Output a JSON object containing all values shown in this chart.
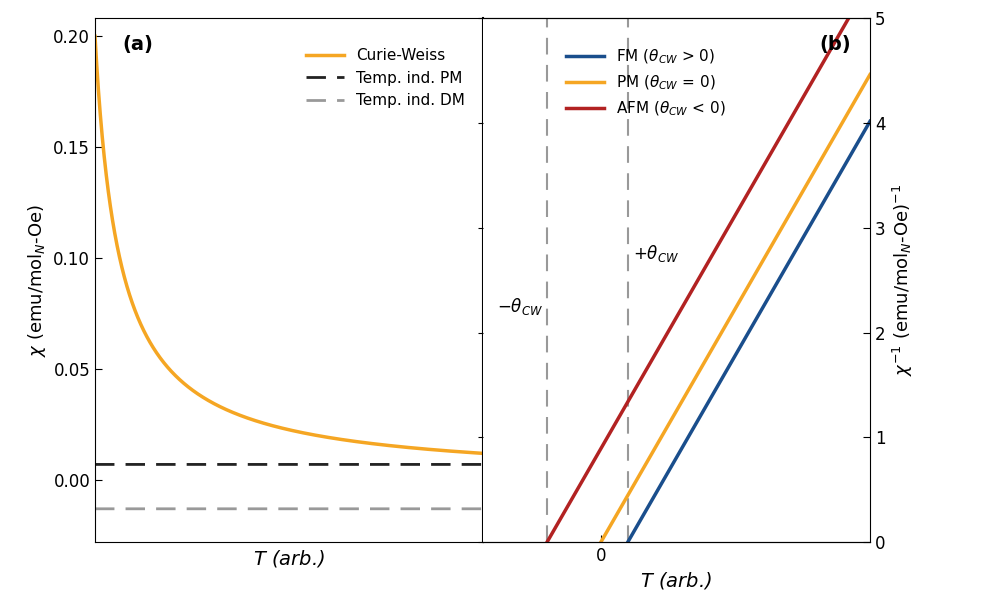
{
  "panel_a": {
    "label": "(a)",
    "curie_weiss_color": "#F5A623",
    "pm_color": "#222222",
    "dm_color": "#999999",
    "ylabel": "$\\chi$ (emu/mol$_N$-Oe)",
    "xlabel": "$T$ (arb.)",
    "ylim": [
      -0.028,
      0.208
    ],
    "yticks": [
      0.0,
      0.05,
      0.1,
      0.15,
      0.2
    ],
    "legend_labels": [
      "Curie-Weiss",
      "Temp. ind. PM",
      "Temp. ind. DM"
    ],
    "pm_value": 0.007,
    "dm_value": -0.013,
    "C_val": 0.06,
    "T_min": 0.3,
    "T_max": 5.0
  },
  "panel_b": {
    "label": "(b)",
    "fm_color": "#1A4E8C",
    "pm_color": "#F5A623",
    "afm_color": "#B22222",
    "ylabel": "$\\chi^{-1}$ (emu/mol$_N$-Oe)$^{-1}$",
    "xlabel": "$T$ (arb.)",
    "ylim": [
      0,
      5
    ],
    "yticks": [
      0,
      1,
      2,
      3,
      4,
      5
    ],
    "T_min": -1.1,
    "T_max": 2.5,
    "C_inv": 0.56,
    "theta_FM": 0.25,
    "theta_PM": 0.0,
    "theta_AFM": -0.5,
    "vline_neg": -0.5,
    "vline_pos": 0.25,
    "legend_labels": [
      "FM ($\\theta_{CW}$ > 0)",
      "PM ($\\theta_{CW}$ = 0)",
      "AFM ($\\theta_{CW}$ < 0)"
    ]
  },
  "fig_width": 10.0,
  "fig_height": 6.16
}
